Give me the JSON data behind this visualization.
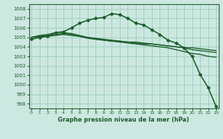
{
  "title": "Graphe pression niveau de la mer (hPa)",
  "bg_color": "#cce8e0",
  "grid_color": "#99ccbb",
  "line_color": "#1a5c2a",
  "ylim": [
    997.5,
    1008.5
  ],
  "yticks": [
    998,
    999,
    1000,
    1001,
    1002,
    1003,
    1004,
    1005,
    1006,
    1007,
    1008
  ],
  "xlim": [
    -0.3,
    23.3
  ],
  "xticks": [
    0,
    1,
    2,
    3,
    4,
    5,
    6,
    7,
    8,
    9,
    10,
    11,
    12,
    13,
    14,
    15,
    16,
    17,
    18,
    19,
    20,
    21,
    22,
    23
  ],
  "series": [
    {
      "x": [
        0,
        1,
        2,
        3,
        4,
        5,
        6,
        7,
        8,
        9,
        10,
        11,
        12,
        13,
        14,
        15,
        16,
        17,
        18,
        19,
        20,
        21,
        22,
        23
      ],
      "y": [
        1004.8,
        1005.0,
        1005.1,
        1005.5,
        1005.6,
        1006.0,
        1006.5,
        1006.8,
        1007.0,
        1007.1,
        1007.5,
        1007.4,
        1007.0,
        1006.5,
        1006.3,
        1005.8,
        1005.3,
        1004.7,
        1004.4,
        1003.9,
        1003.0,
        1001.1,
        999.7,
        997.7
      ],
      "marker": "D",
      "marker_size": 2.5,
      "linewidth": 1.2,
      "zorder": 5
    },
    {
      "x": [
        0,
        1,
        2,
        3,
        4,
        5,
        6,
        7,
        8,
        9,
        10,
        11,
        12,
        13,
        14,
        15,
        16,
        17,
        18,
        19,
        20,
        21,
        22,
        23
      ],
      "y": [
        1005.0,
        1005.1,
        1005.2,
        1005.3,
        1005.4,
        1005.3,
        1005.1,
        1005.0,
        1004.9,
        1004.8,
        1004.7,
        1004.6,
        1004.5,
        1004.5,
        1004.4,
        1004.3,
        1004.2,
        1004.1,
        1004.0,
        1003.9,
        1003.9,
        1003.8,
        1003.7,
        1003.6
      ],
      "marker": null,
      "linewidth": 1.0,
      "zorder": 3
    },
    {
      "x": [
        0,
        1,
        2,
        3,
        4,
        5,
        6,
        7,
        8,
        9,
        10,
        11,
        12,
        13,
        14,
        15,
        16,
        17,
        18,
        19,
        20,
        21,
        22,
        23
      ],
      "y": [
        1005.0,
        1005.1,
        1005.1,
        1005.2,
        1005.3,
        1005.2,
        1005.1,
        1004.9,
        1004.8,
        1004.7,
        1004.6,
        1004.6,
        1004.5,
        1004.4,
        1004.3,
        1004.3,
        1004.2,
        1004.1,
        1004.0,
        1003.9,
        1003.7,
        1003.6,
        1003.5,
        1003.4
      ],
      "marker": null,
      "linewidth": 1.0,
      "zorder": 3
    },
    {
      "x": [
        0,
        1,
        2,
        3,
        4,
        5,
        6,
        7,
        8,
        9,
        10,
        11,
        12,
        13,
        14,
        15,
        16,
        17,
        18,
        19,
        20,
        21,
        22,
        23
      ],
      "y": [
        1005.0,
        1005.2,
        1005.3,
        1005.5,
        1005.5,
        1005.4,
        1005.2,
        1005.0,
        1004.8,
        1004.7,
        1004.6,
        1004.5,
        1004.4,
        1004.3,
        1004.2,
        1004.1,
        1004.0,
        1003.9,
        1003.7,
        1003.5,
        1003.3,
        1003.2,
        1003.0,
        1002.9
      ],
      "marker": null,
      "linewidth": 1.0,
      "zorder": 3
    }
  ]
}
